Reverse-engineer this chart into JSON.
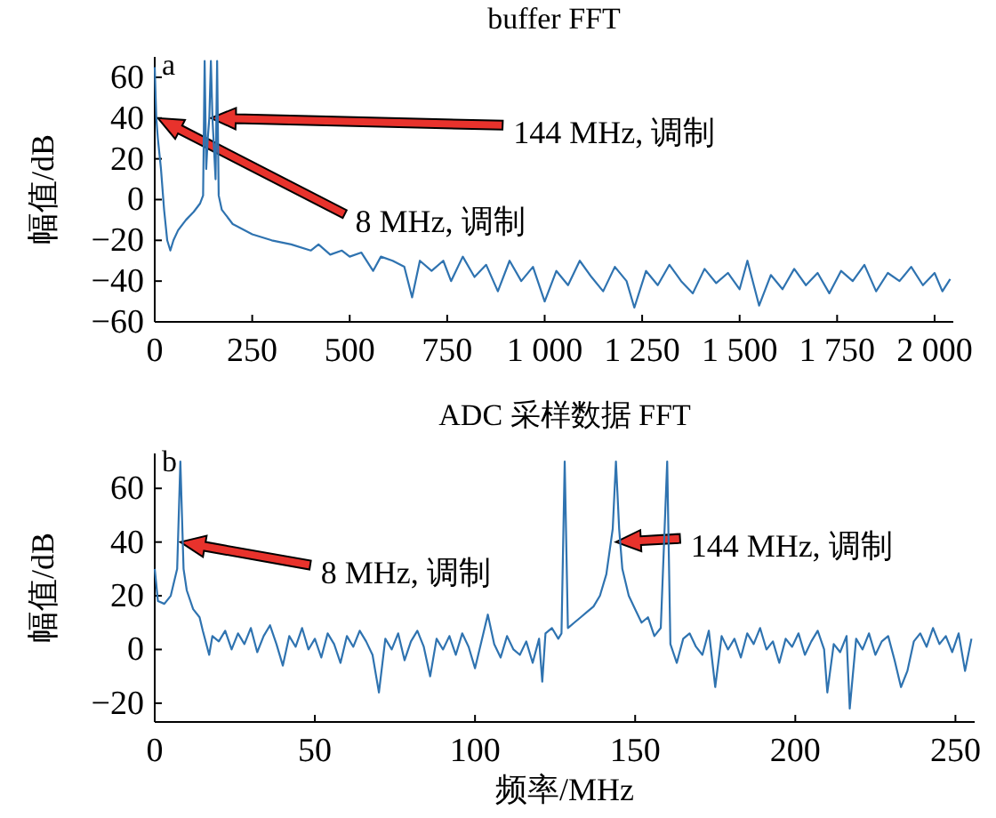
{
  "chart_data": [
    {
      "type": "line",
      "title": "buffer FFT",
      "ylabel": "幅值/dB",
      "color": "#2f73b0",
      "annotations": [
        "a",
        "144 MHz, 调制",
        "8 MHz, 调制"
      ],
      "xlim": [
        0,
        2048
      ],
      "ylim": [
        -60,
        70
      ],
      "xticks": [
        0,
        250,
        500,
        750,
        {
          "value": 1000,
          "label": "1 000"
        },
        {
          "value": 1250,
          "label": "1 250"
        },
        {
          "value": 1500,
          "label": "1 500"
        },
        {
          "value": 1750,
          "label": "1 750"
        },
        {
          "value": 2000,
          "label": "2 000"
        }
      ],
      "yticks": [
        -60,
        -40,
        -20,
        0,
        20,
        40,
        60
      ],
      "x": [
        0,
        4,
        8,
        16,
        24,
        32,
        40,
        48,
        60,
        80,
        100,
        116,
        124,
        128,
        132,
        136,
        140,
        144,
        148,
        152,
        156,
        160,
        164,
        172,
        200,
        250,
        300,
        350,
        400,
        420,
        450,
        480,
        500,
        530,
        560,
        580,
        610,
        640,
        660,
        680,
        710,
        740,
        760,
        790,
        820,
        850,
        880,
        910,
        940,
        970,
        1000,
        1030,
        1060,
        1090,
        1120,
        1150,
        1180,
        1210,
        1230,
        1260,
        1290,
        1320,
        1350,
        1380,
        1410,
        1440,
        1470,
        1500,
        1520,
        1550,
        1580,
        1610,
        1640,
        1670,
        1700,
        1730,
        1760,
        1790,
        1820,
        1850,
        1880,
        1910,
        1940,
        1970,
        2000,
        2020,
        2040
      ],
      "values": [
        65,
        40,
        30,
        15,
        -5,
        -20,
        -25,
        -20,
        -15,
        -10,
        -6,
        -2,
        2,
        68,
        15,
        30,
        40,
        68,
        40,
        25,
        10,
        68,
        2,
        -5,
        -12,
        -17,
        -20,
        -22,
        -25,
        -22,
        -27,
        -25,
        -28,
        -26,
        -35,
        -28,
        -30,
        -33,
        -48,
        -30,
        -35,
        -30,
        -40,
        -28,
        -38,
        -32,
        -45,
        -30,
        -40,
        -33,
        -50,
        -35,
        -42,
        -30,
        -38,
        -45,
        -33,
        -40,
        -53,
        -35,
        -42,
        -32,
        -40,
        -46,
        -34,
        -41,
        -36,
        -44,
        -30,
        -52,
        -37,
        -44,
        -34,
        -42,
        -36,
        -46,
        -35,
        -40,
        -32,
        -45,
        -36,
        -40,
        -33,
        -42,
        -36,
        -45,
        -39
      ]
    },
    {
      "type": "line",
      "title": "ADC 采样数据 FFT",
      "xlabel": "频率/MHz",
      "ylabel": "幅值/dB",
      "color": "#2f73b0",
      "annotations": [
        "b",
        "8 MHz, 调制",
        {
          "text": "144 MHz, 调制",
          "x": 144,
          "y": 40
        }
      ],
      "xlim": [
        0,
        256
      ],
      "ylim": [
        -27,
        73
      ],
      "xticks": [
        0,
        50,
        100,
        150,
        200,
        250
      ],
      "yticks": [
        -20,
        0,
        20,
        40,
        60
      ],
      "x": [
        0,
        1,
        3,
        5,
        7,
        8,
        9,
        10,
        12,
        14,
        15,
        17,
        18,
        20,
        22,
        24,
        26,
        28,
        30,
        32,
        34,
        36,
        38,
        40,
        42,
        44,
        46,
        48,
        50,
        52,
        54,
        56,
        58,
        60,
        62,
        64,
        66,
        68,
        70,
        72,
        74,
        76,
        78,
        80,
        82,
        84,
        86,
        88,
        90,
        92,
        94,
        96,
        98,
        100,
        102,
        104,
        106,
        108,
        110,
        112,
        114,
        116,
        118,
        120,
        121,
        122,
        124,
        126,
        127,
        128,
        129,
        131,
        133,
        135,
        137,
        139,
        141,
        143,
        144,
        145,
        146,
        148,
        150,
        152,
        154,
        156,
        158,
        160,
        161,
        163,
        165,
        167,
        169,
        171,
        173,
        175,
        177,
        179,
        181,
        183,
        185,
        187,
        189,
        191,
        193,
        195,
        197,
        199,
        201,
        203,
        205,
        207,
        209,
        210,
        212,
        214,
        216,
        217,
        219,
        221,
        223,
        225,
        227,
        229,
        231,
        233,
        235,
        237,
        239,
        241,
        243,
        245,
        247,
        249,
        251,
        253,
        255
      ],
      "values": [
        30,
        18,
        17,
        20,
        30,
        70,
        30,
        22,
        15,
        12,
        7,
        -2,
        5,
        3,
        7,
        0,
        6,
        2,
        8,
        -1,
        5,
        9,
        2,
        -6,
        5,
        1,
        8,
        0,
        4,
        -3,
        6,
        2,
        -5,
        5,
        1,
        7,
        3,
        -2,
        -16,
        4,
        0,
        6,
        -4,
        3,
        7,
        1,
        -10,
        4,
        0,
        5,
        -2,
        6,
        1,
        -7,
        3,
        13,
        2,
        -3,
        5,
        0,
        -2,
        3,
        -5,
        4,
        -12,
        6,
        8,
        4,
        6,
        70,
        8,
        10,
        12,
        14,
        16,
        20,
        28,
        45,
        70,
        45,
        30,
        20,
        15,
        10,
        12,
        5,
        8,
        70,
        2,
        -5,
        4,
        6,
        1,
        -2,
        7,
        -14,
        5,
        0,
        4,
        -3,
        6,
        2,
        8,
        0,
        3,
        -5,
        4,
        1,
        6,
        -2,
        3,
        7,
        0,
        -16,
        2,
        -1,
        5,
        -22,
        4,
        0,
        6,
        -2,
        3,
        5,
        -4,
        -14,
        -8,
        3,
        6,
        1,
        8,
        2,
        5,
        -1,
        6,
        -8,
        4
      ]
    }
  ]
}
